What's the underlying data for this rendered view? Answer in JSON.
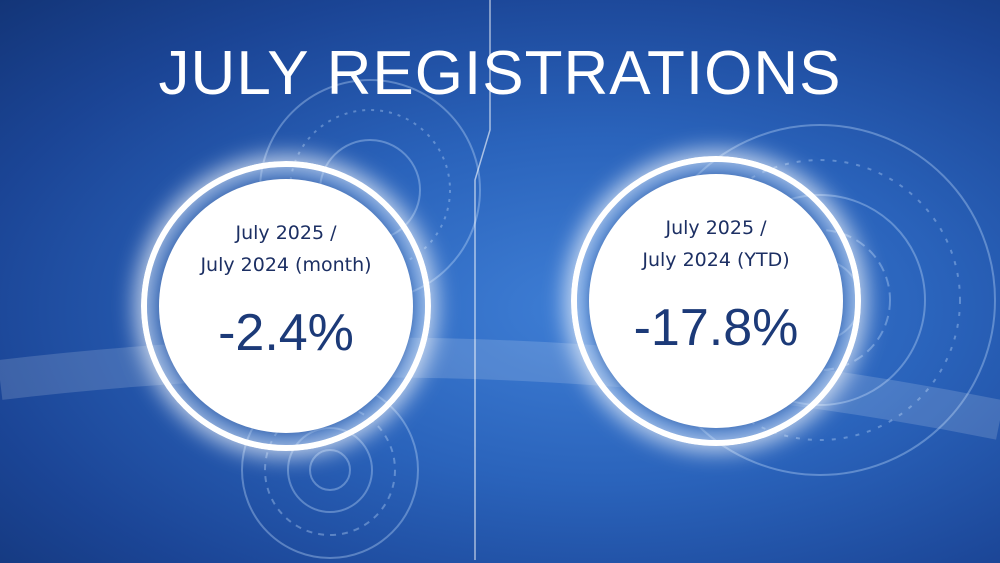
{
  "title": "JULY REGISTRATIONS",
  "badges": [
    {
      "line1": "July 2025 /",
      "line2": "July 2024 (month)",
      "value": "-2.4%"
    },
    {
      "line1": "July 2025 /",
      "line2": "July 2024 (YTD)",
      "value": "-17.8%"
    }
  ],
  "colors": {
    "background": "#2a63bb",
    "text": "#1c3a78",
    "ring": "#ffffff"
  }
}
